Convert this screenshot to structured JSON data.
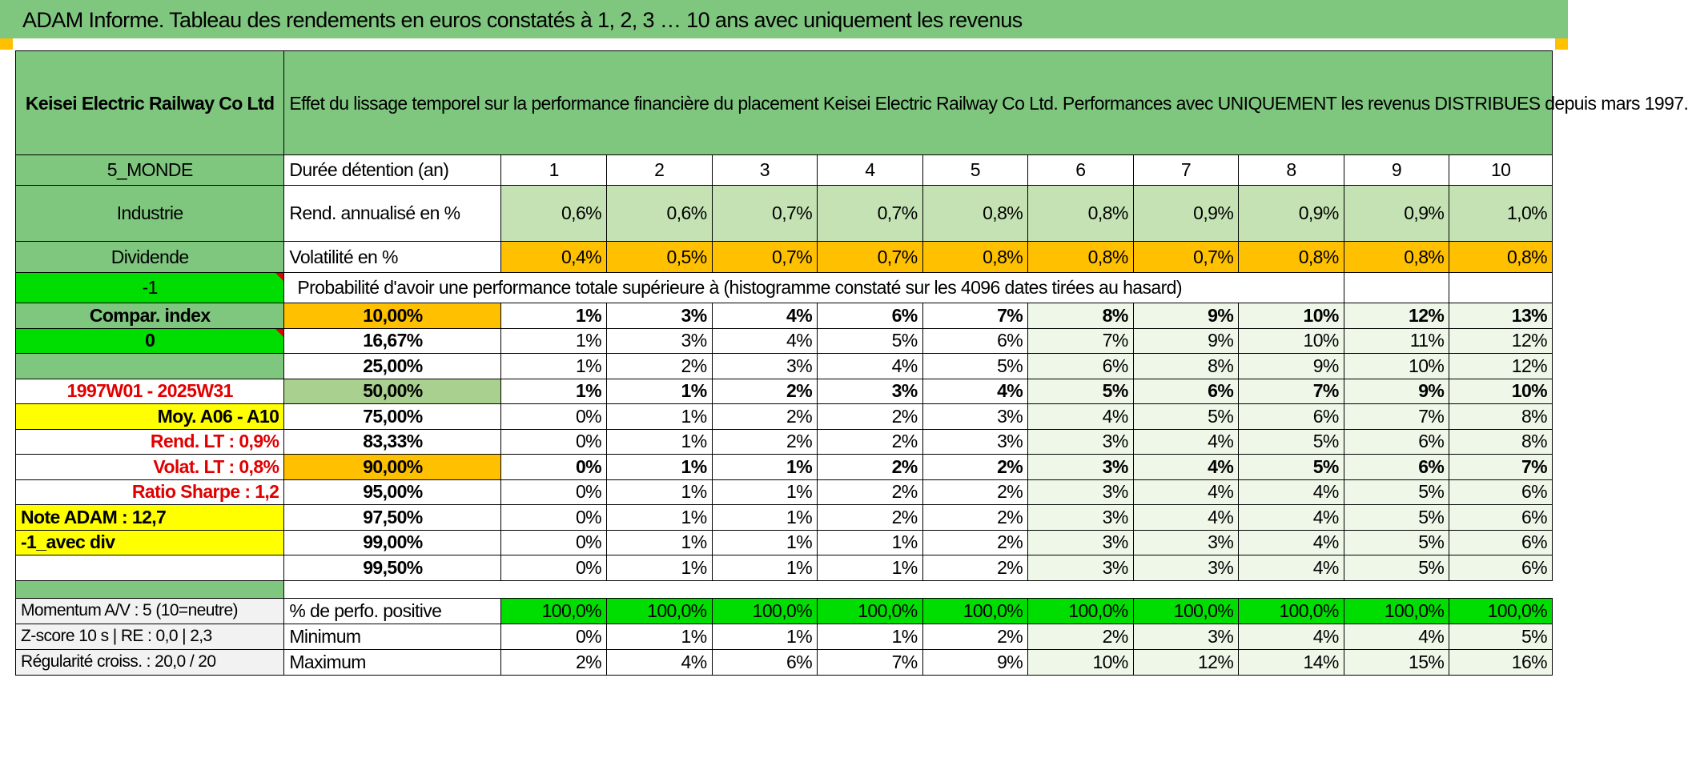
{
  "title": "ADAM Informe. Tableau des rendements en euros constatés à 1, 2, 3 … 10 ans avec uniquement les revenus",
  "fund_name": "Keisei Electric Railway Co Ltd",
  "description": "Effet du lissage temporel sur la performance financière du placement Keisei Electric Railway Co Ltd. Performances avec UNIQUEMENT les revenus DISTRIBUES depuis mars 1997.",
  "side": {
    "region": "5_MONDE",
    "sector": "Industrie",
    "type": "Dividende",
    "param1": "-1",
    "compar_label": "Compar. index",
    "param2": "0",
    "period": "1997W01 - 2025W31",
    "moy": "Moy. A06 - A10",
    "rend_lt": "Rend. LT :    0,9%",
    "volat_lt": "Volat. LT :    0,8%",
    "sharpe": "Ratio Sharpe :    1,2",
    "note": "Note ADAM : 12,7",
    "variant": "-1_avec div"
  },
  "header_row": {
    "label": "Durée détention (an)",
    "years": [
      "1",
      "2",
      "3",
      "4",
      "5",
      "6",
      "7",
      "8",
      "9",
      "10"
    ]
  },
  "rend": {
    "label": "Rend. annualisé en %",
    "values": [
      "0,6%",
      "0,6%",
      "0,7%",
      "0,7%",
      "0,8%",
      "0,8%",
      "0,9%",
      "0,9%",
      "0,9%",
      "1,0%"
    ]
  },
  "vol": {
    "label": "Volatilité en %",
    "values": [
      "0,4%",
      "0,5%",
      "0,7%",
      "0,7%",
      "0,8%",
      "0,8%",
      "0,7%",
      "0,8%",
      "0,8%",
      "0,8%"
    ]
  },
  "prob_title": "Probabilité d'avoir une performance totale supérieure à (histogramme constaté sur les 4096 dates tirées au hasard)",
  "percentiles": [
    {
      "pct": "10,00%",
      "values": [
        "1%",
        "3%",
        "4%",
        "6%",
        "7%",
        "8%",
        "9%",
        "10%",
        "12%",
        "13%"
      ]
    },
    {
      "pct": "16,67%",
      "values": [
        "1%",
        "3%",
        "4%",
        "5%",
        "6%",
        "7%",
        "9%",
        "10%",
        "11%",
        "12%"
      ]
    },
    {
      "pct": "25,00%",
      "values": [
        "1%",
        "2%",
        "3%",
        "4%",
        "5%",
        "6%",
        "8%",
        "9%",
        "10%",
        "12%"
      ]
    },
    {
      "pct": "50,00%",
      "values": [
        "1%",
        "1%",
        "2%",
        "3%",
        "4%",
        "5%",
        "6%",
        "7%",
        "9%",
        "10%"
      ]
    },
    {
      "pct": "75,00%",
      "values": [
        "0%",
        "1%",
        "2%",
        "2%",
        "3%",
        "4%",
        "5%",
        "6%",
        "7%",
        "8%"
      ]
    },
    {
      "pct": "83,33%",
      "values": [
        "0%",
        "1%",
        "2%",
        "2%",
        "3%",
        "3%",
        "4%",
        "5%",
        "6%",
        "8%"
      ]
    },
    {
      "pct": "90,00%",
      "values": [
        "0%",
        "1%",
        "1%",
        "2%",
        "2%",
        "3%",
        "4%",
        "5%",
        "6%",
        "7%"
      ]
    },
    {
      "pct": "95,00%",
      "values": [
        "0%",
        "1%",
        "1%",
        "2%",
        "2%",
        "3%",
        "4%",
        "4%",
        "5%",
        "6%"
      ]
    },
    {
      "pct": "97,50%",
      "values": [
        "0%",
        "1%",
        "1%",
        "2%",
        "2%",
        "3%",
        "4%",
        "4%",
        "5%",
        "6%"
      ]
    },
    {
      "pct": "99,00%",
      "values": [
        "0%",
        "1%",
        "1%",
        "1%",
        "2%",
        "3%",
        "3%",
        "4%",
        "5%",
        "6%"
      ]
    },
    {
      "pct": "99,50%",
      "values": [
        "0%",
        "1%",
        "1%",
        "1%",
        "2%",
        "3%",
        "3%",
        "4%",
        "5%",
        "6%"
      ]
    }
  ],
  "bottom": [
    {
      "left": "Momentum A/V : 5 (10=neutre)",
      "label": "% de perfo. positive",
      "values": [
        "100,0%",
        "100,0%",
        "100,0%",
        "100,0%",
        "100,0%",
        "100,0%",
        "100,0%",
        "100,0%",
        "100,0%",
        "100,0%"
      ]
    },
    {
      "left": "Z-score 10 s | RE : 0,0 | 2,3",
      "label": "Minimum",
      "values": [
        "0%",
        "1%",
        "1%",
        "1%",
        "2%",
        "2%",
        "3%",
        "4%",
        "4%",
        "5%"
      ]
    },
    {
      "left": "Régularité croiss. : 20,0 / 20",
      "label": "Maximum",
      "values": [
        "2%",
        "4%",
        "6%",
        "7%",
        "9%",
        "10%",
        "12%",
        "14%",
        "15%",
        "16%"
      ]
    }
  ],
  "colors": {
    "header_green": "#7fc67f",
    "light_green": "#c4e2b4",
    "orange": "#ffc000",
    "bright_green": "#00dd00",
    "yellow": "#ffff00",
    "red_text": "#e00000"
  }
}
